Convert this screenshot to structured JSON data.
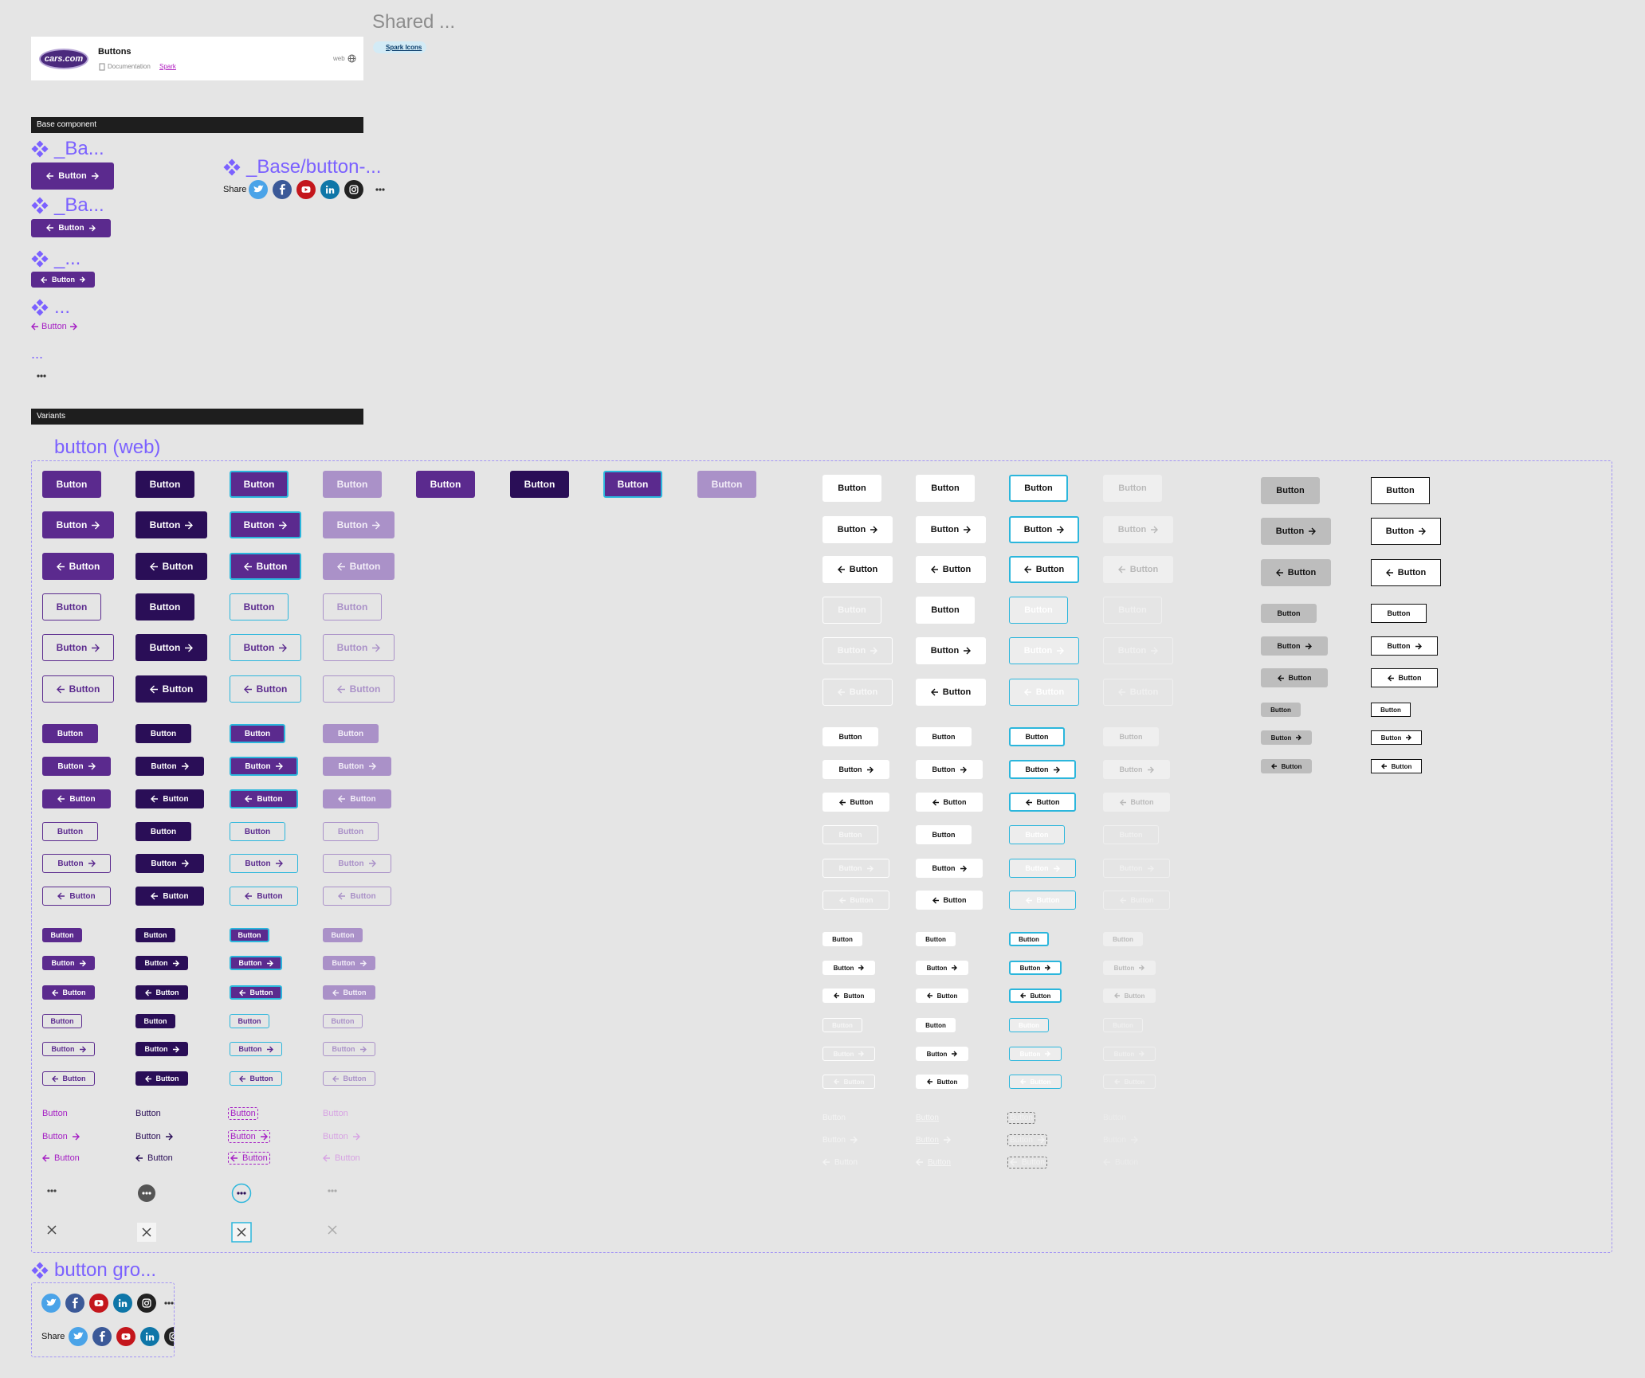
{
  "shared": {
    "title": "Shared ...",
    "badge": "Spark Icons"
  },
  "header": {
    "logo": "cars.com",
    "title": "Buttons",
    "doc": "Documentation",
    "link": "Spark",
    "platform": "web"
  },
  "base": {
    "bar": "Base component",
    "items": [
      {
        "heading": "_Ba...",
        "label": "Button"
      },
      {
        "heading": "_Ba...",
        "label": "Button"
      },
      {
        "heading": "_...",
        "label": "Button"
      },
      {
        "heading": "...",
        "label": "Button"
      }
    ],
    "more": "...",
    "instance": {
      "heading": "_Base/button-...",
      "share": "Share"
    }
  },
  "variants": {
    "bar": "Variants",
    "title": "button (web)",
    "label": "Button"
  },
  "group": {
    "title": "button gro...",
    "share": "Share"
  }
}
